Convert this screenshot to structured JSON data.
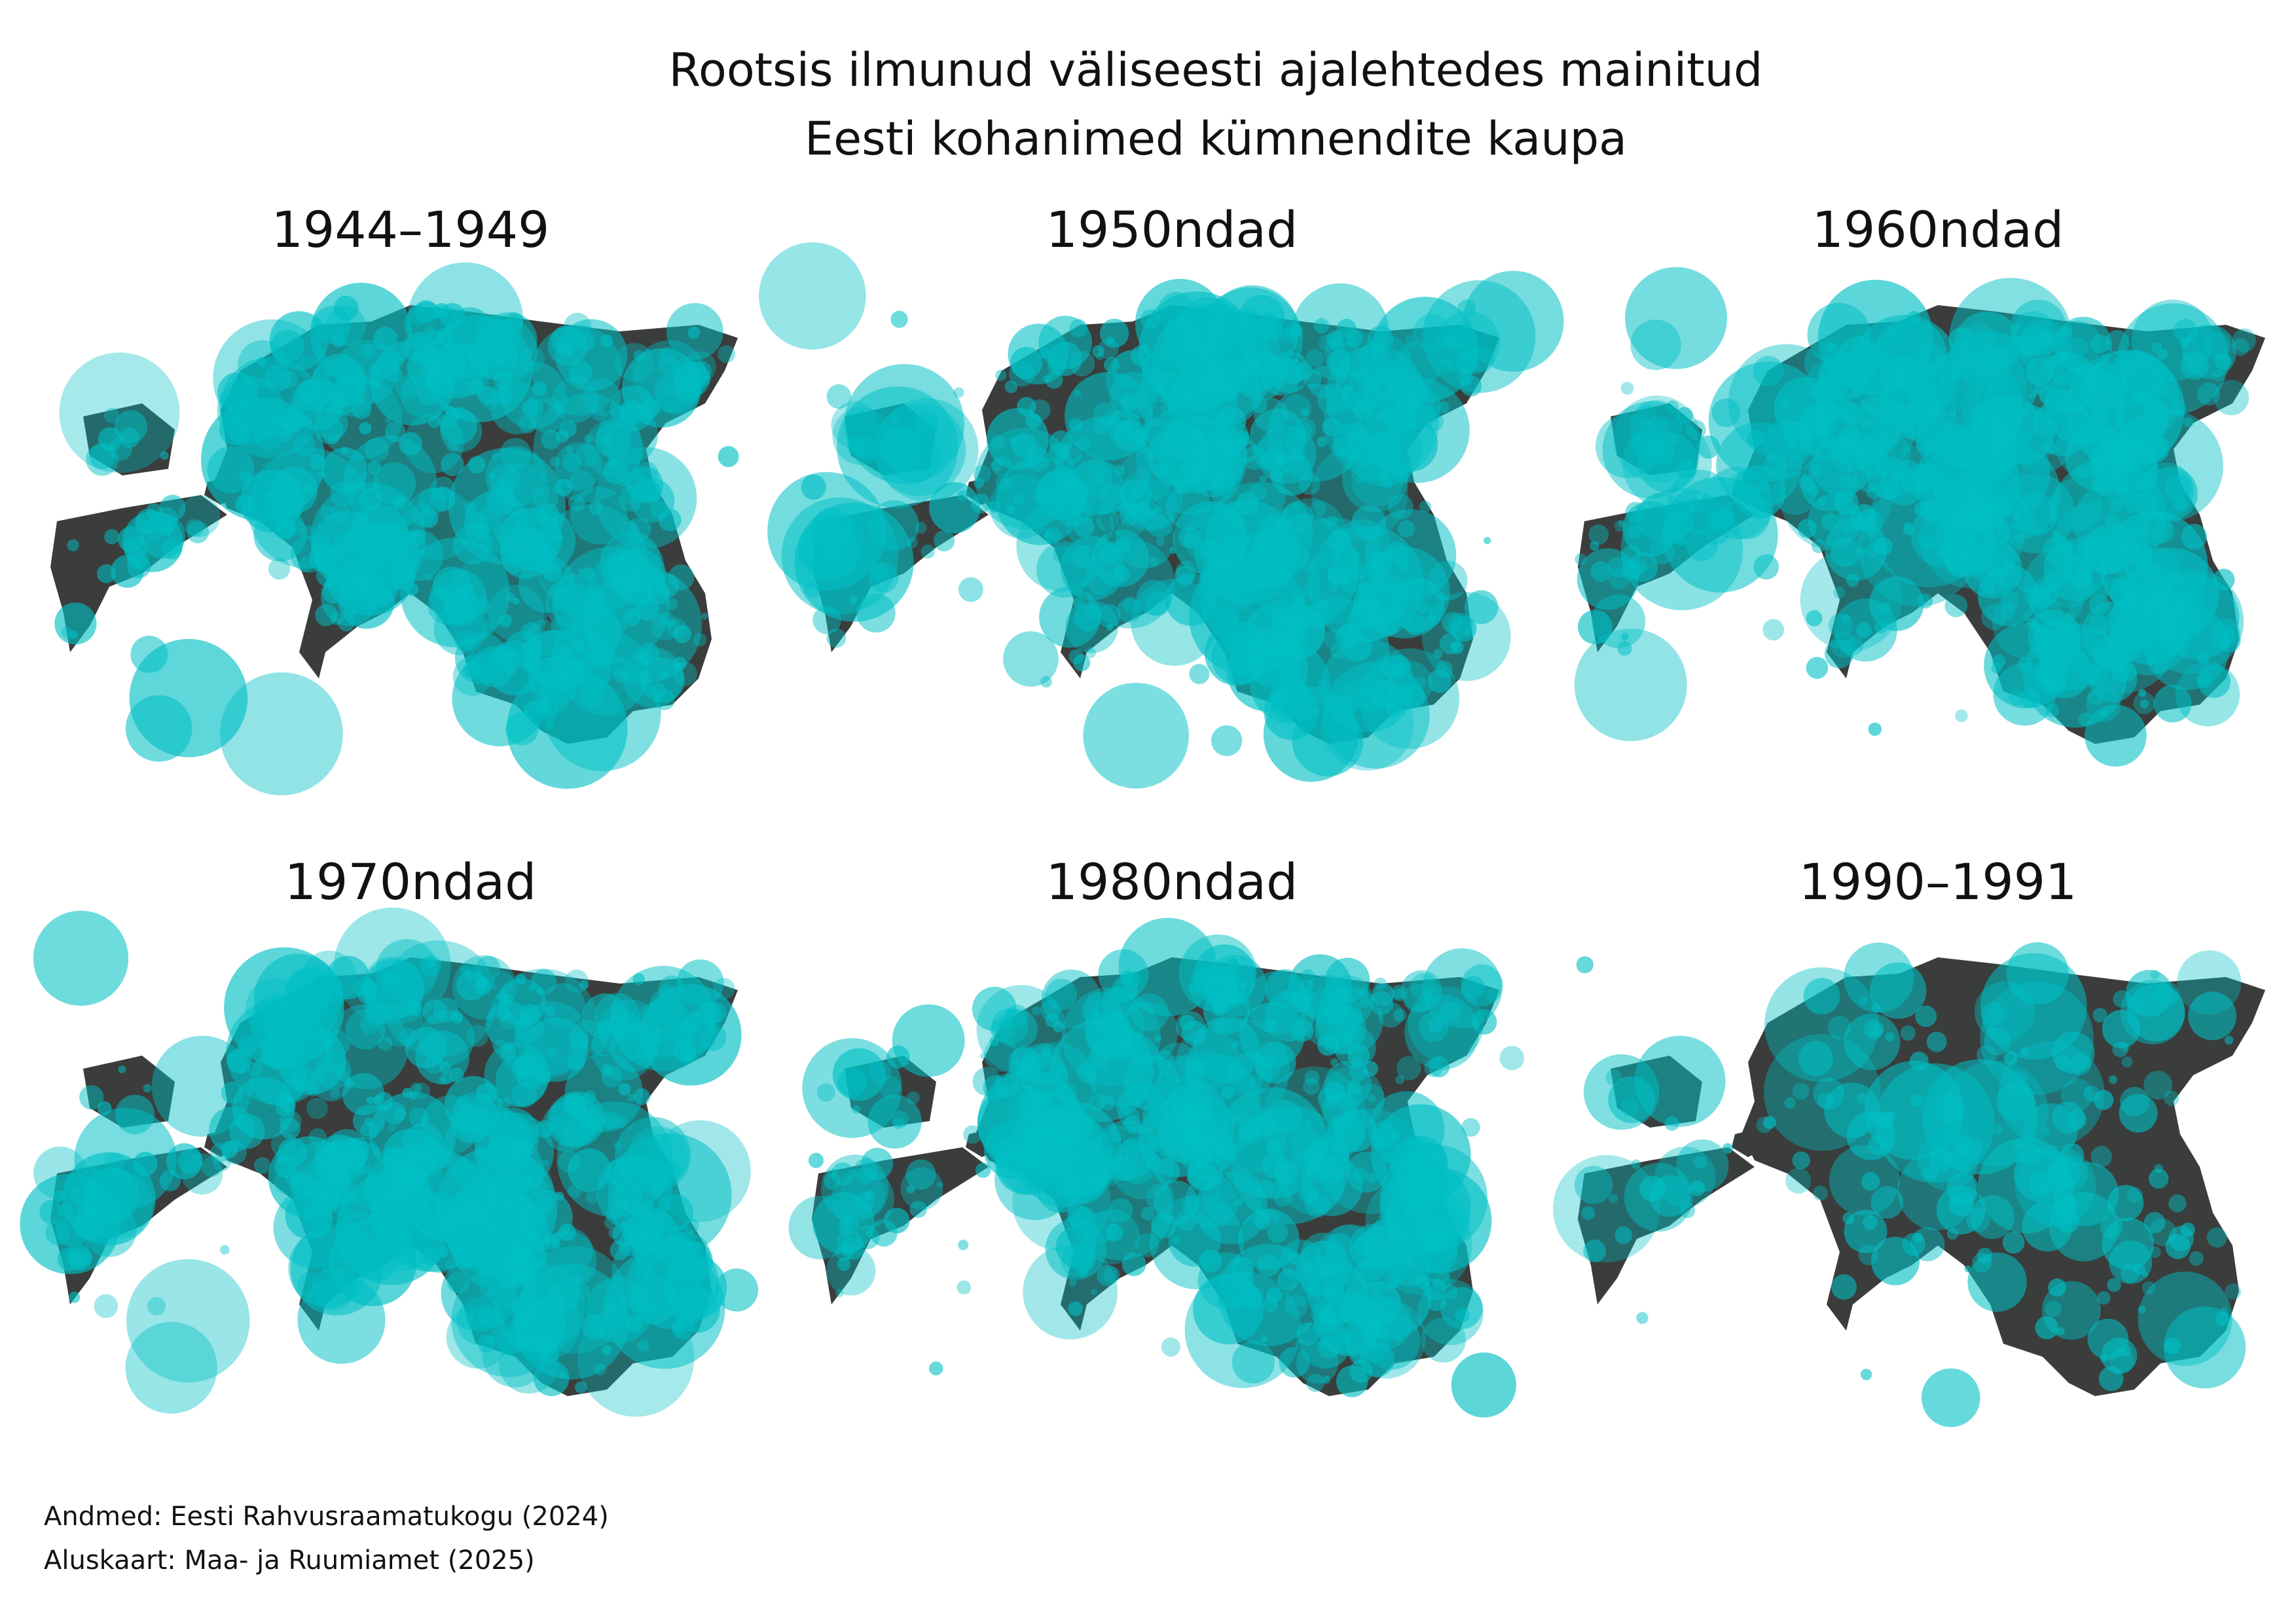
{
  "title": [
    "Rootsis ilmunud väliseesti ajalehtedes mainitud",
    "Eesti kohanimed kümnendite kaupa"
  ],
  "panels": [
    {
      "title": "1944–1949"
    },
    {
      "title": "1950ndad"
    },
    {
      "title": "1960ndad"
    },
    {
      "title": "1970ndad"
    },
    {
      "title": "1980ndad"
    },
    {
      "title": "1990–1991"
    }
  ],
  "credits": [
    "Andmed: Eesti Rahvusraamatukogu (2024)",
    "Aluskaart: Maa- ja Ruumiamet (2025)"
  ]
}
